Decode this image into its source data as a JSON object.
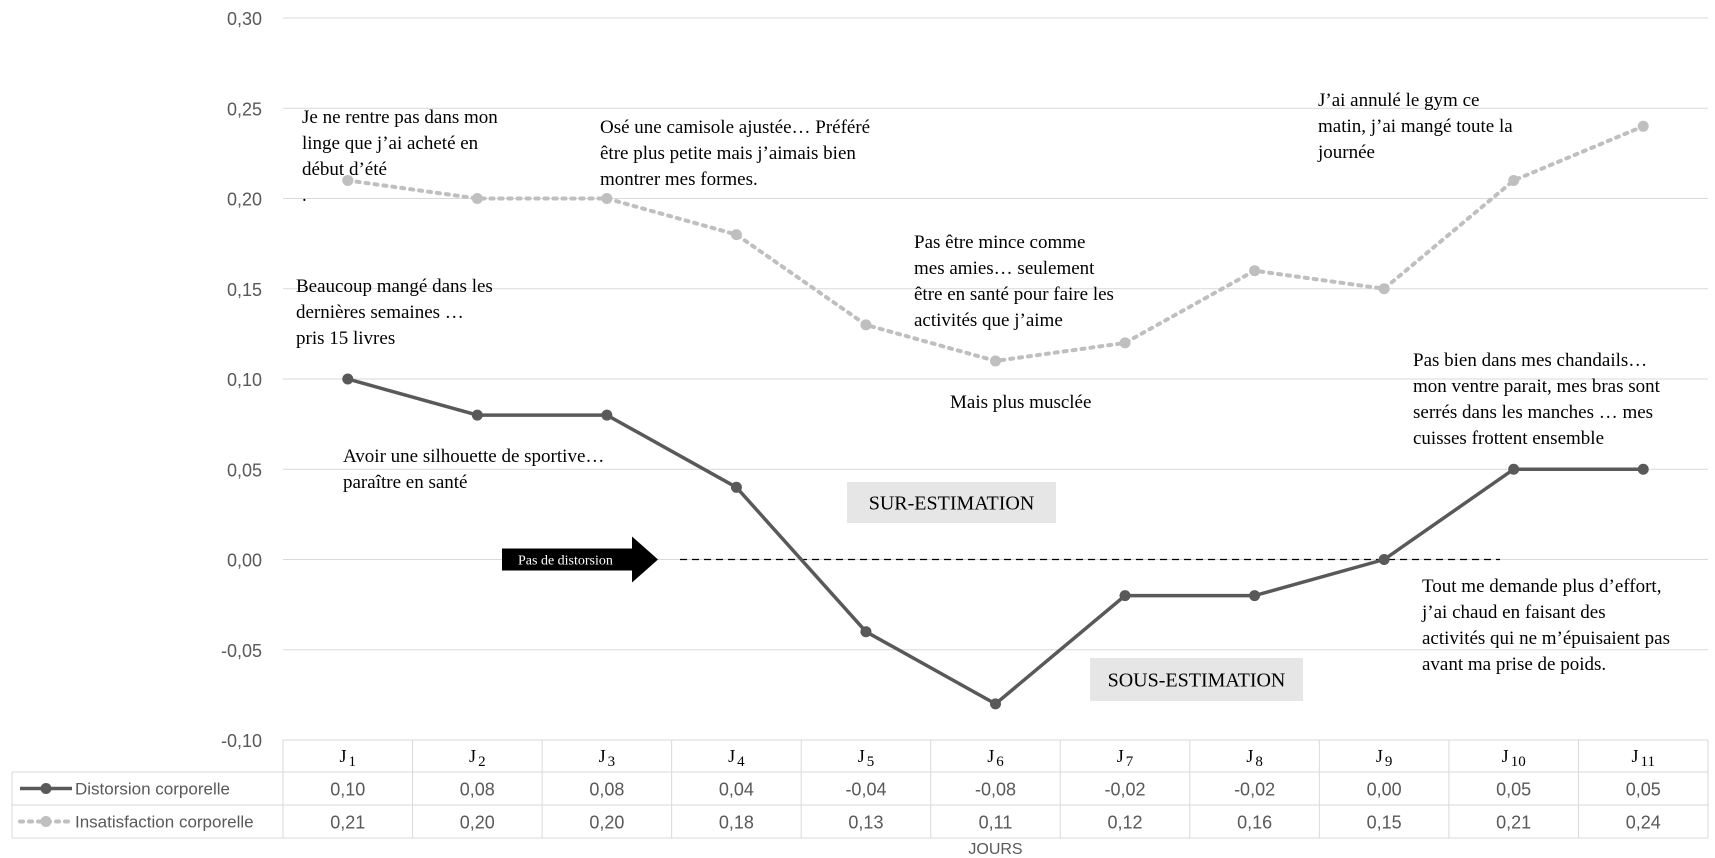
{
  "chart_data": {
    "type": "line",
    "xlabel": "JOURS",
    "ylim": [
      -0.1,
      0.3
    ],
    "yticks": [
      "-0,10",
      "-0,05",
      "0,00",
      "0,05",
      "0,10",
      "0,15",
      "0,20",
      "0,25",
      "0,30"
    ],
    "categories": [
      {
        "main": "J",
        "sub": "1"
      },
      {
        "main": "J",
        "sub": "2"
      },
      {
        "main": "J",
        "sub": "3"
      },
      {
        "main": "J",
        "sub": "4"
      },
      {
        "main": "J",
        "sub": "5"
      },
      {
        "main": "J",
        "sub": "6"
      },
      {
        "main": "J",
        "sub": "7"
      },
      {
        "main": "J",
        "sub": "8"
      },
      {
        "main": "J",
        "sub": "9"
      },
      {
        "main": "J",
        "sub": "10"
      },
      {
        "main": "J",
        "sub": "11"
      }
    ],
    "series": [
      {
        "name": "Distorsion corporelle",
        "values": [
          0.1,
          0.08,
          0.08,
          0.04,
          -0.04,
          -0.08,
          -0.02,
          -0.02,
          0.0,
          0.05,
          0.05
        ],
        "labels": [
          "0,10",
          "0,08",
          "0,08",
          "0,04",
          "-0,04",
          "-0,08",
          "-0,02",
          "-0,02",
          "0,00",
          "0,05",
          "0,05"
        ],
        "color": "#595959",
        "style": "solid"
      },
      {
        "name": "Insatisfaction corporelle",
        "values": [
          0.21,
          0.2,
          0.2,
          0.18,
          0.13,
          0.11,
          0.12,
          0.16,
          0.15,
          0.21,
          0.24
        ],
        "labels": [
          "0,21",
          "0,20",
          "0,20",
          "0,18",
          "0,13",
          "0,11",
          "0,12",
          "0,16",
          "0,15",
          "0,21",
          "0,24"
        ],
        "color": "#bfbfbf",
        "style": "dotted"
      }
    ],
    "zero_arrow_label": "Pas de distorsion",
    "region_labels": [
      "SUR-ESTIMATION",
      "SOUS-ESTIMATION"
    ],
    "annotations": [
      {
        "id": "ann-j1-top",
        "lines": [
          "Je ne rentre pas dans mon",
          "linge que j’ai acheté en",
          "début d’été",
          "."
        ]
      },
      {
        "id": "ann-j3-top",
        "lines": [
          "Osé une camisole ajustée… Préféré",
          "être plus petite mais j’aimais bien",
          "montrer mes formes."
        ]
      },
      {
        "id": "ann-j10-top",
        "lines": [
          "J’ai annulé le gym ce",
          "matin, j’ai mangé toute la",
          "journée"
        ]
      },
      {
        "id": "ann-j6-mid",
        "lines": [
          "Pas être mince comme",
          "mes amies… seulement",
          "être en santé pour faire les",
          "activités que j’aime"
        ]
      },
      {
        "id": "ann-j1-mid",
        "lines": [
          "Beaucoup mangé dans les",
          "dernières semaines …",
          "pris 15 livres"
        ]
      },
      {
        "id": "ann-j6-low",
        "lines": [
          "Mais plus musclée"
        ]
      },
      {
        "id": "ann-j10-mid",
        "lines": [
          "Pas bien dans mes chandails…",
          "mon ventre parait, mes bras sont",
          "serrés dans les manches … mes",
          "cuisses frottent ensemble"
        ]
      },
      {
        "id": "ann-j2-low",
        "lines": [
          "Avoir une silhouette de sportive…",
          "paraître en santé"
        ]
      },
      {
        "id": "ann-j10-bottom",
        "lines": [
          "Tout me demande plus d’effort,",
          "j’ai chaud en faisant des",
          "activités qui ne m’épuisaient pas",
          "avant ma prise de poids."
        ]
      }
    ]
  }
}
